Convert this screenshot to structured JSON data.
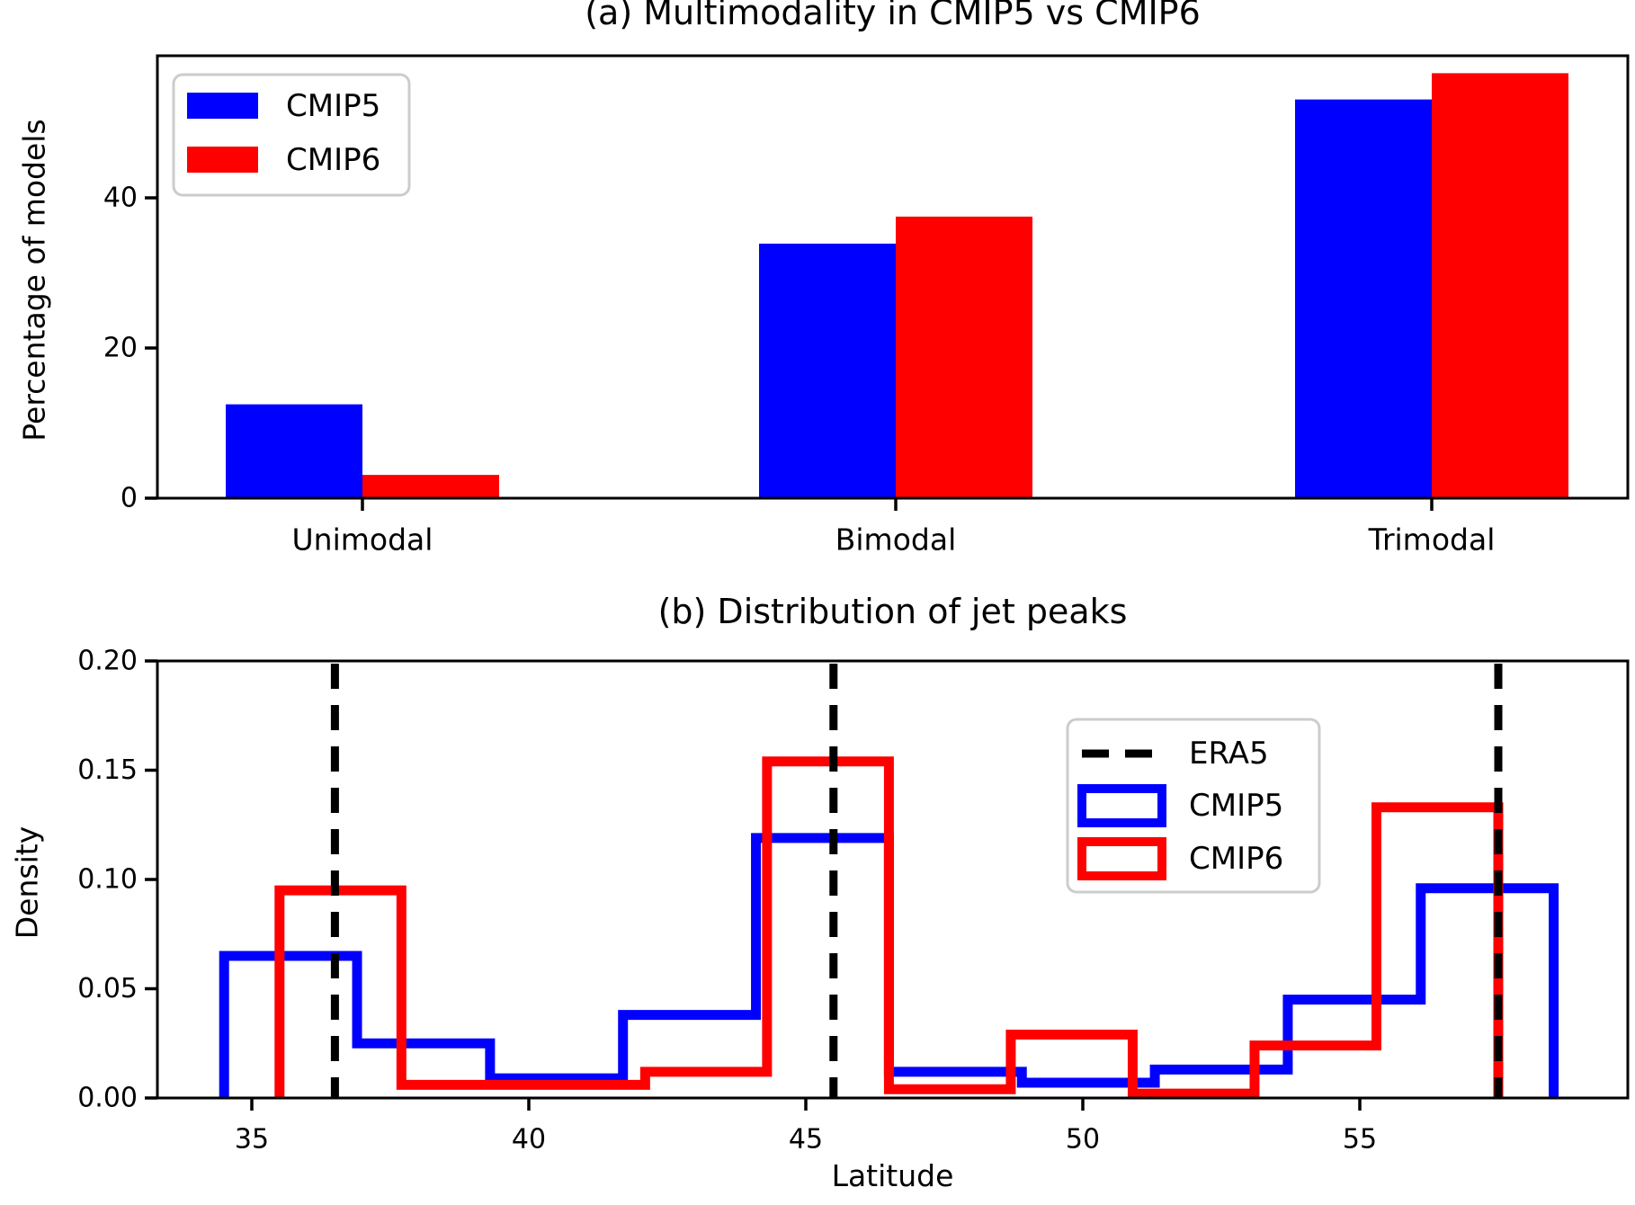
{
  "colors": {
    "cmip5": "#0000ff",
    "cmip6": "#ff0000",
    "era5": "#000000",
    "axis": "#000000",
    "legend_border": "#cccccc",
    "background": "#ffffff"
  },
  "chart_data": [
    {
      "id": "panel_a",
      "type": "bar",
      "title": "(a) Multimodality in CMIP5 vs CMIP6",
      "ylabel": "Percentage of models",
      "categories": [
        "Unimodal",
        "Bimodal",
        "Trimodal"
      ],
      "series": [
        {
          "name": "CMIP5",
          "color_key": "cmip5",
          "values": [
            12.5,
            33.9,
            53.1
          ]
        },
        {
          "name": "CMIP6",
          "color_key": "cmip6",
          "values": [
            3.1,
            37.5,
            56.6
          ]
        }
      ],
      "yticks": [
        0,
        20,
        40
      ],
      "ylim": [
        0,
        59.5
      ],
      "grid": false,
      "legend_position": "upper-left",
      "legend_labels": [
        "CMIP5",
        "CMIP6"
      ]
    },
    {
      "id": "panel_b",
      "type": "step-histogram",
      "title": "(b) Distribution of jet peaks",
      "xlabel": "Latitude",
      "ylabel": "Density",
      "xticks": [
        35,
        40,
        45,
        50,
        55
      ],
      "ytick_labels": [
        "0.00",
        "0.05",
        "0.10",
        "0.15",
        "0.20"
      ],
      "yticks": [
        0,
        0.05,
        0.1,
        0.15,
        0.2
      ],
      "xlim": [
        33.3,
        59.8
      ],
      "ylim": [
        0,
        0.2
      ],
      "era5_peak_latitudes": [
        36.5,
        45.5,
        57.5
      ],
      "series": [
        {
          "name": "CMIP5",
          "color_key": "cmip5",
          "bin_edges": [
            34.5,
            36.9,
            39.3,
            41.7,
            44.1,
            46.5,
            48.9,
            51.3,
            53.7,
            56.1,
            58.5
          ],
          "densities": [
            0.065,
            0.025,
            0.009,
            0.038,
            0.119,
            0.012,
            0.007,
            0.013,
            0.045,
            0.096
          ]
        },
        {
          "name": "CMIP6",
          "color_key": "cmip6",
          "bin_edges": [
            35.5,
            37.7,
            39.9,
            42.1,
            44.3,
            46.5,
            48.7,
            50.9,
            53.1,
            55.3,
            57.5
          ],
          "densities": [
            0.095,
            0.006,
            0.006,
            0.012,
            0.154,
            0.004,
            0.029,
            0.002,
            0.024,
            0.133
          ]
        }
      ],
      "legend_labels": [
        "ERA5",
        "CMIP5",
        "CMIP6"
      ],
      "legend_position": "upper-right"
    }
  ]
}
